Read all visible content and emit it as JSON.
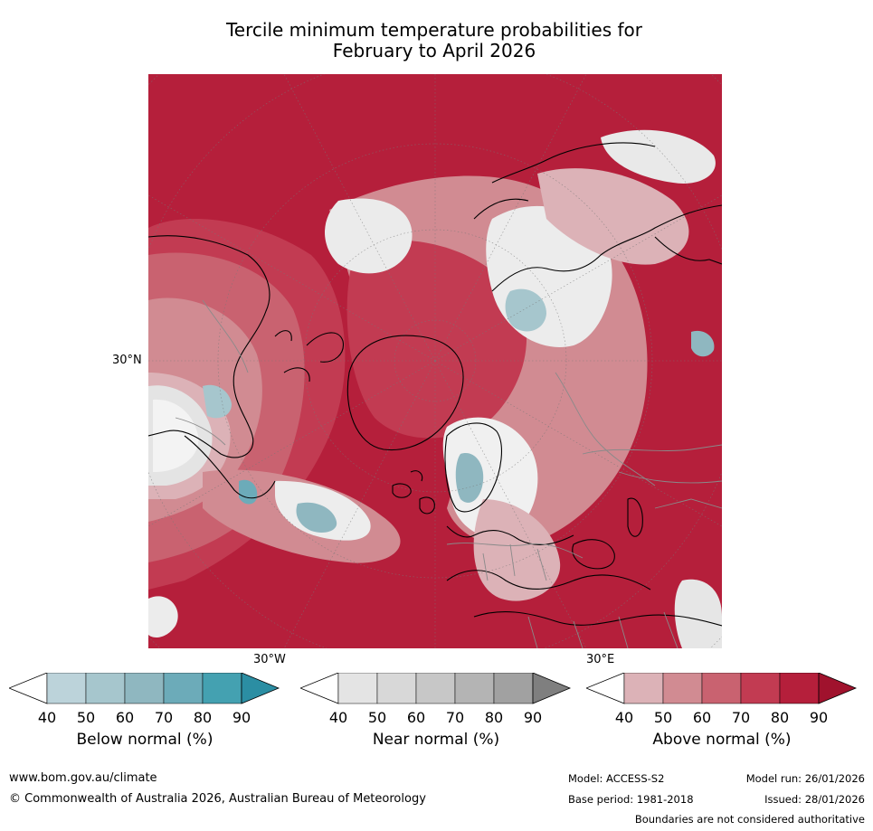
{
  "title": {
    "line1": "Tercile minimum temperature probabilities for",
    "line2": "February to April 2026"
  },
  "map": {
    "projection": "north-polar-stereographic",
    "lat_label": "30°N",
    "lon_labels": {
      "west": "30°W",
      "east": "30°E"
    },
    "colors": {
      "above90": "#b51f3b",
      "above80": "#c23b52",
      "above70": "#c96270",
      "above60": "#d18b92",
      "above50": "#dcb2b7",
      "white": "#ffffff",
      "near50": "#e4e4e4",
      "near60": "#d3d3d3",
      "below50": "#bcd3da",
      "below60": "#a6c6cd",
      "below70": "#8fb7c0",
      "coast": "#000000",
      "border": "#8a8a8a",
      "grid": "#777777"
    }
  },
  "colorbars": [
    {
      "label": "Below normal (%)",
      "ticks": [
        "40",
        "50",
        "60",
        "70",
        "80",
        "90"
      ],
      "colors": [
        "#bcd3da",
        "#a6c6cd",
        "#8fb7c0",
        "#6cabb9",
        "#44a1b1",
        "#2b8ea3"
      ]
    },
    {
      "label": "Near normal (%)",
      "ticks": [
        "40",
        "50",
        "60",
        "70",
        "80",
        "90"
      ],
      "colors": [
        "#e4e4e4",
        "#d8d8d8",
        "#c7c7c7",
        "#b4b4b4",
        "#a1a1a1",
        "#7f7f7f"
      ]
    },
    {
      "label": "Above normal (%)",
      "ticks": [
        "40",
        "50",
        "60",
        "70",
        "80",
        "90"
      ],
      "colors": [
        "#dcb2b7",
        "#d18b92",
        "#c96270",
        "#c23b52",
        "#b51f3b",
        "#a0122d"
      ]
    }
  ],
  "footer": {
    "website": "www.bom.gov.au/climate",
    "copyright": "© Commonwealth of Australia 2026, Australian Bureau of Meteorology",
    "model": "Model: ACCESS-S2",
    "base_period": "Base period: 1981-2018",
    "model_run": "Model run: 26/01/2026",
    "issued": "Issued: 28/01/2026",
    "disclaimer": "Boundaries are not considered authoritative"
  }
}
